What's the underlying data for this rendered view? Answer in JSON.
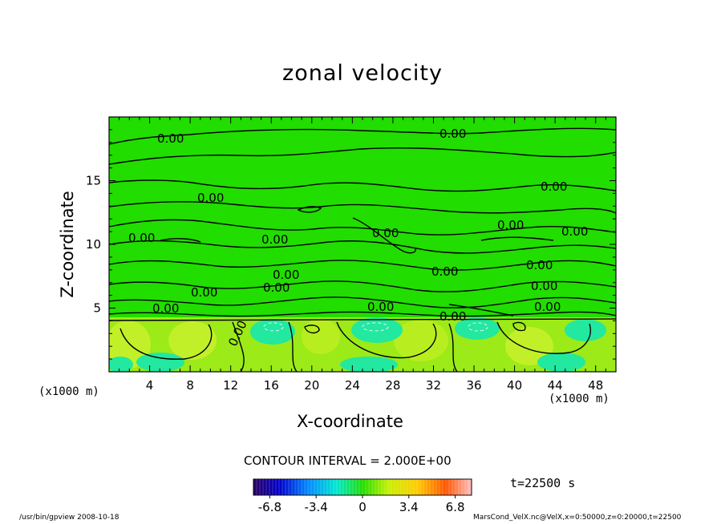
{
  "chart_data": {
    "type": "heatmap",
    "title": "zonal velocity",
    "xlabel": "X-coordinate",
    "ylabel": "Z-coordinate",
    "x_unit": "(x1000 m)",
    "xlim": [
      0,
      50
    ],
    "ylim": [
      0,
      20
    ],
    "x_ticks": [
      4,
      8,
      12,
      16,
      20,
      24,
      28,
      32,
      36,
      40,
      44,
      48
    ],
    "y_ticks": [
      5,
      10,
      15
    ],
    "contour_interval": "CONTOUR INTERVAL = 2.000E+00",
    "contour_labels": [
      "0.00",
      "0.00",
      "0.00",
      "0.00",
      "0.00",
      "0.00",
      "0.00",
      "0.00",
      "0.00",
      "0.00",
      "0.00",
      "0.00",
      "0.00",
      "0.00",
      "0.00",
      "0.00",
      "0.00",
      "0.00",
      "0.00",
      "0.00"
    ],
    "colorbar": {
      "range": [
        -8,
        8
      ],
      "tick_labels": [
        "-6.8",
        "-3.4",
        "0",
        "3.4",
        "6.8"
      ],
      "tick_values": [
        -6.8,
        -3.4,
        0,
        3.4,
        6.8
      ]
    },
    "time": "t=22500 s",
    "grid": false
  },
  "footer": {
    "left": "/usr/bin/gpview   2008-10-18",
    "right": "MarsCond_VelX.nc@VelX,x=0:50000,z=0:20000,t=22500"
  },
  "colors": {
    "field_background": "#22dd00",
    "lower_yellow": "#b8ee20",
    "lower_cyan": "#22e8a0",
    "contour": "#000000"
  }
}
